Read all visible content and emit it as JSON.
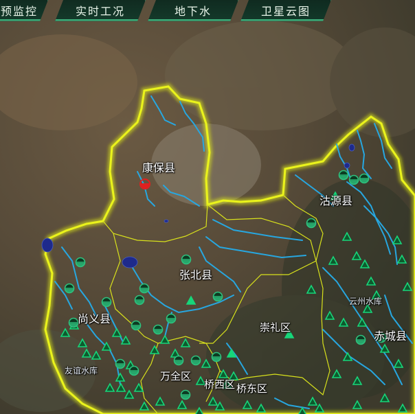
{
  "tabs": [
    {
      "label": "预监控"
    },
    {
      "label": "实时工况"
    },
    {
      "label": "地下水"
    },
    {
      "label": "卫星云图"
    }
  ],
  "labels": {
    "kangbao": "康保县",
    "guyuan": "沽源县",
    "zhangbei": "张北县",
    "shangyi": "尚义县",
    "chongli": "崇礼区",
    "chicheng": "赤城县",
    "wanquan": "万全区",
    "qiaoxi": "桥西区",
    "qiaodong": "桥东区",
    "yunzhou": "云州水库",
    "youyi": "友谊水库"
  },
  "colors": {
    "boundary_glow": "#e6f019",
    "county_line": "#d9e21c",
    "river": "#27a7e0",
    "lake": "#1e2a8c",
    "station_triangle": "#17d67a",
    "station_gauge": "#2ec27e",
    "alert": "#e02020"
  },
  "legend_icons": {
    "triangle": "rainfall-station-icon",
    "gauge": "water-level-station-icon",
    "alert": "alert-station-icon"
  }
}
